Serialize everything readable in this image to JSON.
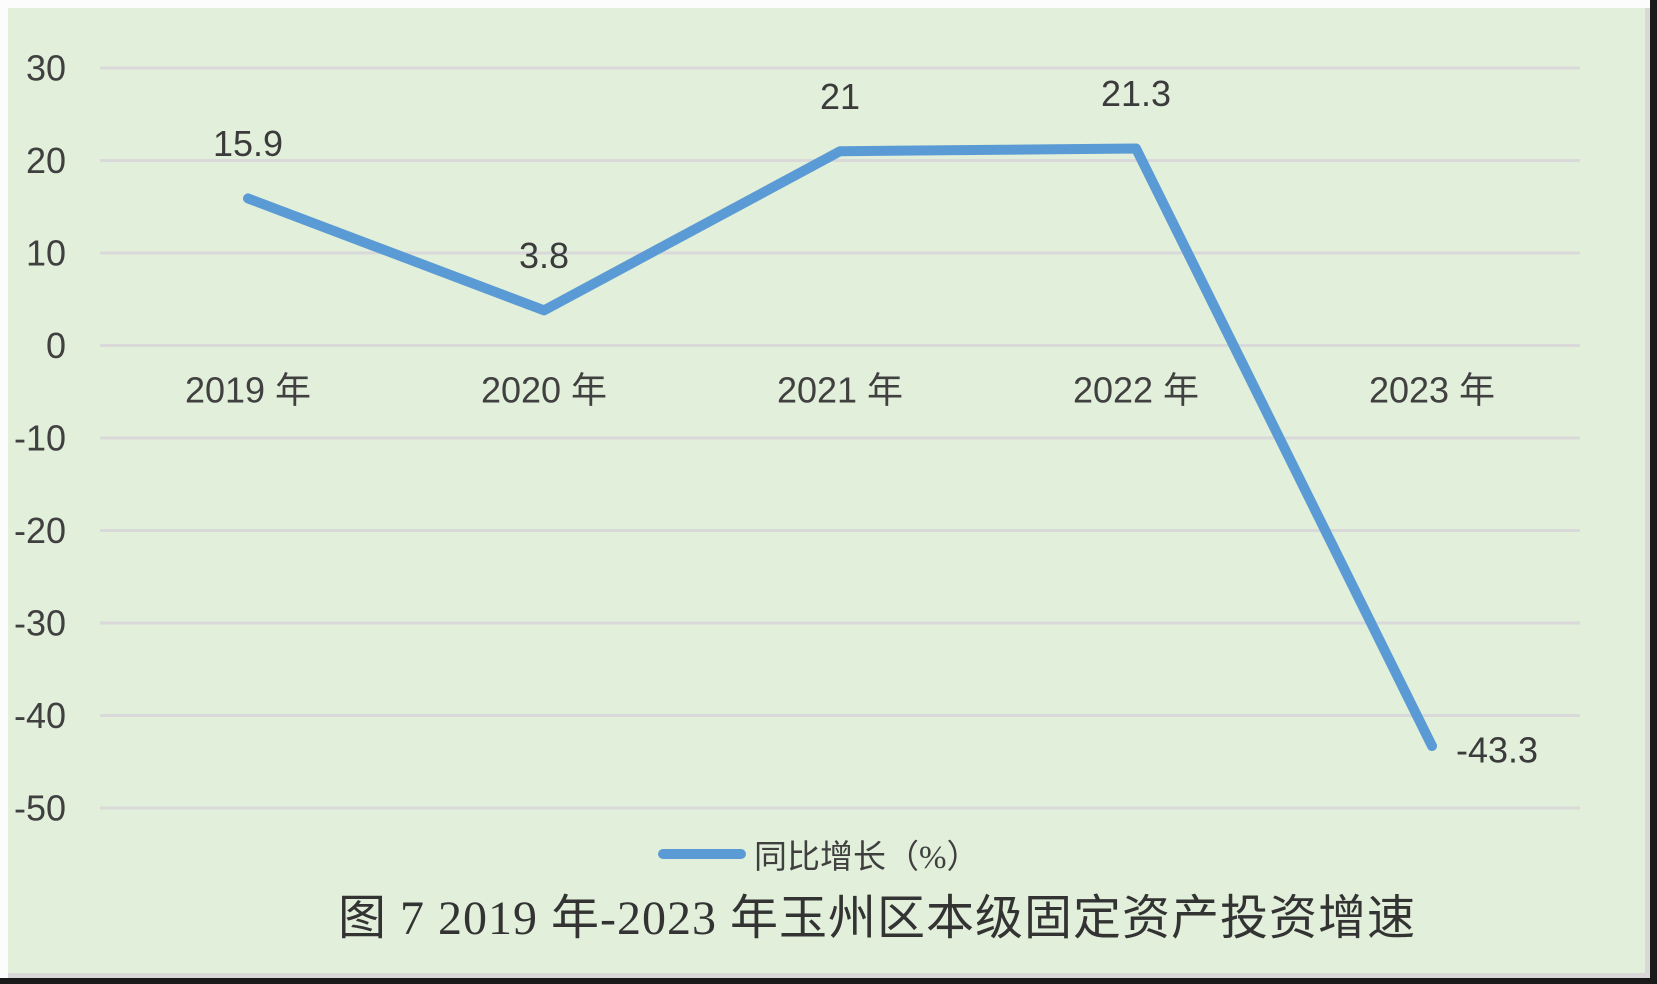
{
  "page": {
    "background": "#FCFCFC",
    "margin_color": "#FCFCFC",
    "edge_color": "#1A1A1A",
    "inner_edge_color": "#D8D8D8"
  },
  "chart_data": {
    "type": "line",
    "title": "图 7  2019 年-2023 年玉州区本级固定资产投资增速",
    "categories": [
      "2019 年",
      "2020 年",
      "2021 年",
      "2022 年",
      "2023 年"
    ],
    "series": [
      {
        "name": "同比增长（%）",
        "values": [
          15.9,
          3.8,
          21,
          21.3,
          -43.3
        ],
        "data_labels": [
          "15.9",
          "3.8",
          "21",
          "21.3",
          "-43.3"
        ],
        "color": "#5B9BD5"
      }
    ],
    "yticks": [
      30,
      20,
      10,
      0,
      -10,
      -20,
      -30,
      -40,
      -50
    ],
    "ylim": [
      -50,
      30
    ],
    "ytick_step": 10,
    "grid": true,
    "gridline_color": "#D9D9D9",
    "plot_bg": "#E2EFDA",
    "text_color": "#404040",
    "legend_position": "bottom"
  }
}
